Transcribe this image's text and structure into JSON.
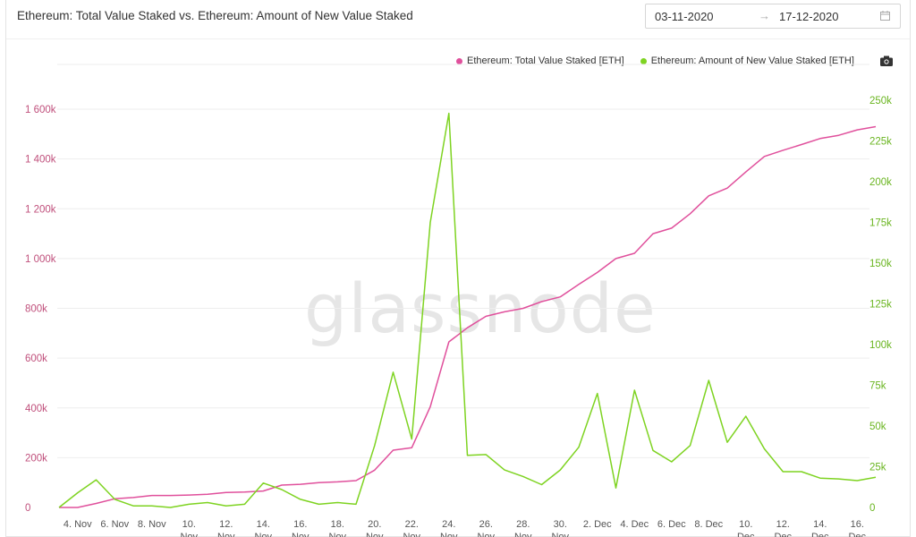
{
  "title": "Ethereum: Total Value Staked vs. Ethereum: Amount of New Value Staked",
  "date_range": {
    "from": "03-11-2020",
    "arrow": "→",
    "to": "17-12-2020"
  },
  "watermark": "glassnode",
  "colors": {
    "total": "#e0509c",
    "new": "#7ed321",
    "left_axis": "#c0507c",
    "right_axis": "#6ab520",
    "grid": "#eeeeee"
  },
  "icons": {
    "calendar": "calendar-icon",
    "camera": "camera-icon"
  },
  "chart_data": {
    "type": "line",
    "x_start": "2020-11-03",
    "x_step_days": 1,
    "x_tick_labels": [
      [
        "4. Nov"
      ],
      [
        "6. Nov"
      ],
      [
        "8. Nov"
      ],
      [
        "10.",
        "Nov"
      ],
      [
        "12.",
        "Nov"
      ],
      [
        "14.",
        "Nov"
      ],
      [
        "16.",
        "Nov"
      ],
      [
        "18.",
        "Nov"
      ],
      [
        "20.",
        "Nov"
      ],
      [
        "22.",
        "Nov"
      ],
      [
        "24.",
        "Nov"
      ],
      [
        "26.",
        "Nov"
      ],
      [
        "28.",
        "Nov"
      ],
      [
        "30.",
        "Nov"
      ],
      [
        "2. Dec"
      ],
      [
        "4. Dec"
      ],
      [
        "6. Dec"
      ],
      [
        "8. Dec"
      ],
      [
        "10.",
        "Dec"
      ],
      [
        "12.",
        "Dec"
      ],
      [
        "14.",
        "Dec"
      ],
      [
        "16.",
        "Dec"
      ]
    ],
    "y_left": {
      "ticks": [
        "0",
        "200k",
        "400k",
        "600k",
        "800k",
        "1 000k",
        "1 200k",
        "1 400k",
        "1 600k"
      ],
      "range": [
        0,
        1600000
      ]
    },
    "y_right": {
      "ticks": [
        "0",
        "25k",
        "50k",
        "75k",
        "100k",
        "125k",
        "150k",
        "175k",
        "200k",
        "225k",
        "250k"
      ],
      "range": [
        0,
        250000
      ]
    },
    "grid": true,
    "legend_position": "top-right",
    "series": [
      {
        "name": "Ethereum: Total Value Staked [ETH]",
        "axis": "left",
        "values": [
          0,
          0,
          16000,
          35000,
          40000,
          48000,
          48000,
          50000,
          53000,
          60000,
          62000,
          66000,
          90000,
          93000,
          100000,
          103000,
          108000,
          150000,
          230000,
          240000,
          405000,
          665000,
          722000,
          768000,
          786000,
          800000,
          827000,
          846000,
          896000,
          944000,
          1000000,
          1021000,
          1100000,
          1122000,
          1180000,
          1252000,
          1283000,
          1348000,
          1410000,
          1435000,
          1458000,
          1482000,
          1495000,
          1517000,
          1530000
        ]
      },
      {
        "name": "Ethereum: Amount of New Value Staked [ETH]",
        "axis": "right",
        "values": [
          0,
          9000,
          17000,
          5000,
          1000,
          1000,
          0,
          2000,
          3000,
          1000,
          2000,
          15000,
          11000,
          5000,
          2000,
          3000,
          2000,
          38000,
          83000,
          42000,
          175000,
          242000,
          32000,
          32500,
          23000,
          19000,
          14000,
          23000,
          37000,
          70000,
          12000,
          72000,
          35000,
          28000,
          38000,
          78000,
          40000,
          56000,
          36000,
          22000,
          22000,
          18000,
          17500,
          16500,
          18500
        ]
      }
    ]
  }
}
